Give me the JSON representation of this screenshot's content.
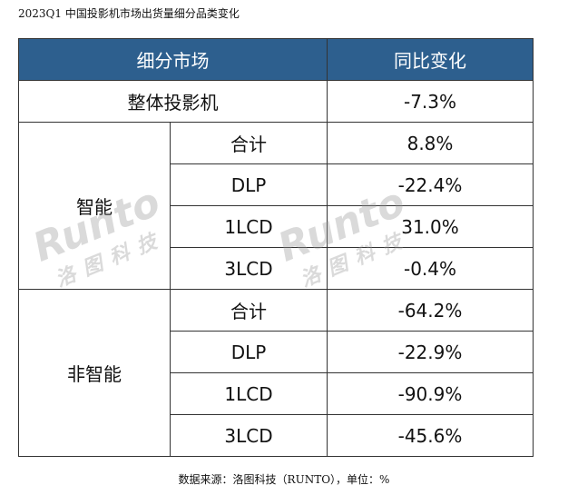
{
  "title": "2023Q1 中国投影机市场出货量细分品类变化",
  "table": {
    "header": [
      "细分市场",
      "同比变化"
    ],
    "total": {
      "label": "整体投影机",
      "value": "-7.3%"
    },
    "groups": [
      {
        "label": "智能",
        "rows": [
          [
            "合计",
            "8.8%"
          ],
          [
            "DLP",
            "-22.4%"
          ],
          [
            "1LCD",
            "31.0%"
          ],
          [
            "3LCD",
            "-0.4%"
          ]
        ]
      },
      {
        "label": "非智能",
        "rows": [
          [
            "合计",
            "-64.2%"
          ],
          [
            "DLP",
            "-22.9%"
          ],
          [
            "1LCD",
            "-90.9%"
          ],
          [
            "3LCD",
            "-45.6%"
          ]
        ]
      }
    ]
  },
  "source": "数据来源：洛图科技（RUNTO），单位：%",
  "watermark": {
    "latin": "Runto",
    "chinese": "洛图科技"
  }
}
